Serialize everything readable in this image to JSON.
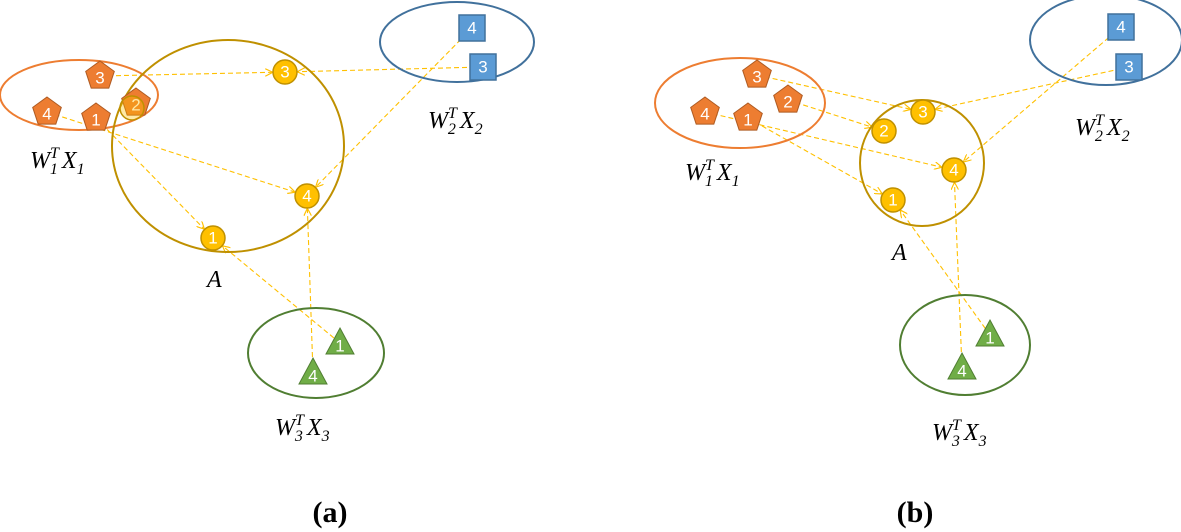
{
  "colors": {
    "view1": "#ed7d31",
    "view2": "#5b9bd5",
    "view3": "#70ad47",
    "shared": "#ffc000",
    "shared_outline": "#bf9000",
    "arrow": "#ffc000"
  },
  "labels": {
    "view1": {
      "base": "W",
      "sub": "1",
      "sup": "T",
      "base2": "X",
      "sub2": "1"
    },
    "view2": {
      "base": "W",
      "sub": "2",
      "sup": "T",
      "base2": "X",
      "sub2": "2"
    },
    "view3": {
      "base": "W",
      "sub": "3",
      "sup": "T",
      "base2": "X",
      "sub2": "3"
    },
    "shared": "A"
  },
  "panels": [
    {
      "caption": "(a)",
      "view1_nodes": [
        "3",
        "4",
        "1",
        "2"
      ],
      "view2_nodes": [
        "4",
        "3"
      ],
      "view3_nodes": [
        "1",
        "4"
      ],
      "shared_nodes": [
        "3",
        "4",
        "1",
        "2"
      ]
    },
    {
      "caption": "(b)",
      "view1_nodes": [
        "3",
        "4",
        "1",
        "2"
      ],
      "view2_nodes": [
        "4",
        "3"
      ],
      "view3_nodes": [
        "1",
        "4"
      ],
      "shared_nodes": [
        "3",
        "2",
        "4",
        "1"
      ]
    }
  ]
}
